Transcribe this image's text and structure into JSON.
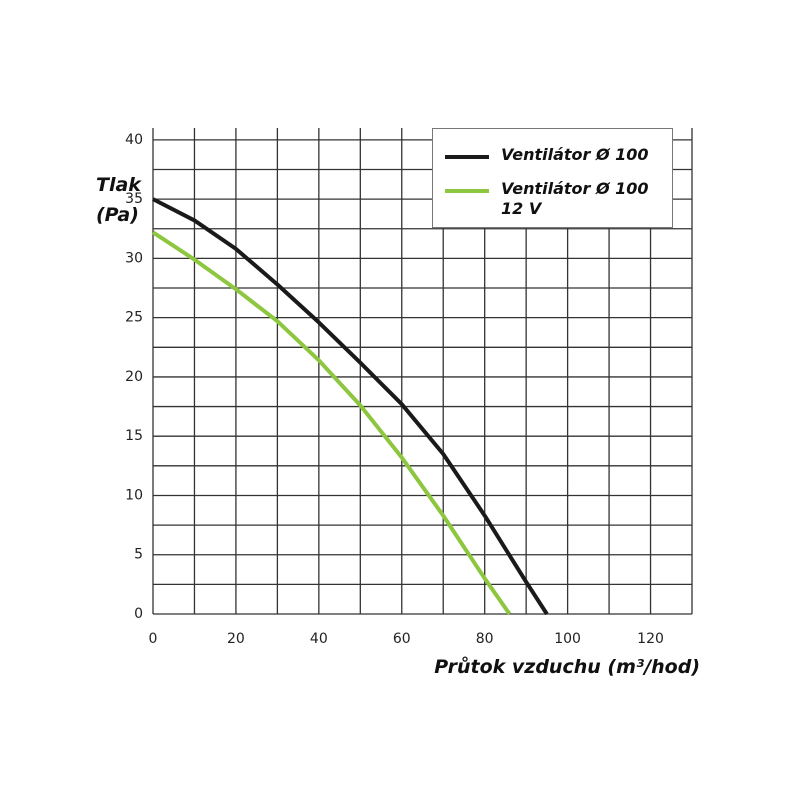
{
  "chart_data": {
    "type": "line",
    "y_label": "Tlak (Pa)",
    "x_label": "Průtok vzduchu (m³/hod)",
    "xlim": [
      0,
      130
    ],
    "ylim": [
      0,
      41
    ],
    "xticks": [
      0,
      20,
      40,
      60,
      80,
      100,
      120
    ],
    "yticks": [
      0,
      5,
      10,
      15,
      20,
      25,
      30,
      35,
      40
    ],
    "x_minor_grid": [
      10,
      30,
      50,
      70,
      90,
      110,
      130
    ],
    "y_minor_grid": [
      2.5,
      7.5,
      12.5,
      17.5,
      22.5,
      27.5,
      32.5,
      37.5
    ],
    "grid": true,
    "legend": "upper right",
    "series": [
      {
        "name": "Ventilátor Ø 100",
        "color": "#1a1a1a",
        "x": [
          0,
          10,
          20,
          30,
          40,
          50,
          60,
          70,
          80,
          90,
          95
        ],
        "values": [
          35,
          33.2,
          30.8,
          27.8,
          24.6,
          21.2,
          17.7,
          13.5,
          8.3,
          2.7,
          0
        ]
      },
      {
        "name": "Ventilátor Ø 100 12 V",
        "color": "#8dc63f",
        "x": [
          0,
          10,
          20,
          30,
          40,
          50,
          60,
          70,
          80,
          86
        ],
        "values": [
          32.2,
          29.9,
          27.4,
          24.7,
          21.4,
          17.6,
          13.2,
          8.3,
          3,
          0
        ]
      }
    ]
  }
}
